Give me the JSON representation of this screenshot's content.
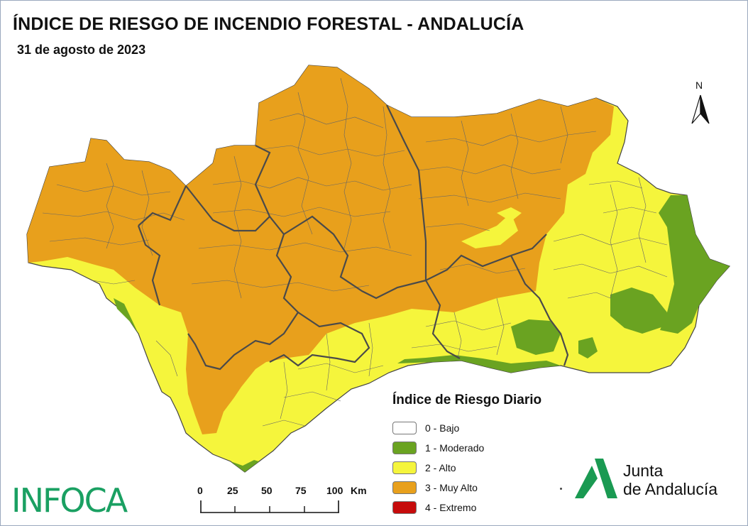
{
  "title": "ÍNDICE DE RIESGO DE INCENDIO FORESTAL - ANDALUCÍA",
  "subtitle": "31 de agosto de 2023",
  "north_label": "N",
  "legend": {
    "title": "Índice de Riesgo Diario",
    "items": [
      {
        "label": "0 - Bajo",
        "color": "#ffffff"
      },
      {
        "label": "1 - Moderado",
        "color": "#6aa321"
      },
      {
        "label": "2 - Alto",
        "color": "#f5f53c"
      },
      {
        "label": "3 - Muy Alto",
        "color": "#e8a01c"
      },
      {
        "label": "4 - Extremo",
        "color": "#c60b0b"
      }
    ]
  },
  "scale": {
    "ticks": [
      "0",
      "25",
      "50",
      "75",
      "100"
    ],
    "unit": "Km"
  },
  "brand_left": "INFOCA",
  "brand_right": {
    "line1": "Junta",
    "line2": "de Andalucía",
    "color": "#1a9a52"
  },
  "colors": {
    "orange": "#e8a01c",
    "yellow": "#f5f53c",
    "green": "#6aa321",
    "border": "#555555"
  }
}
